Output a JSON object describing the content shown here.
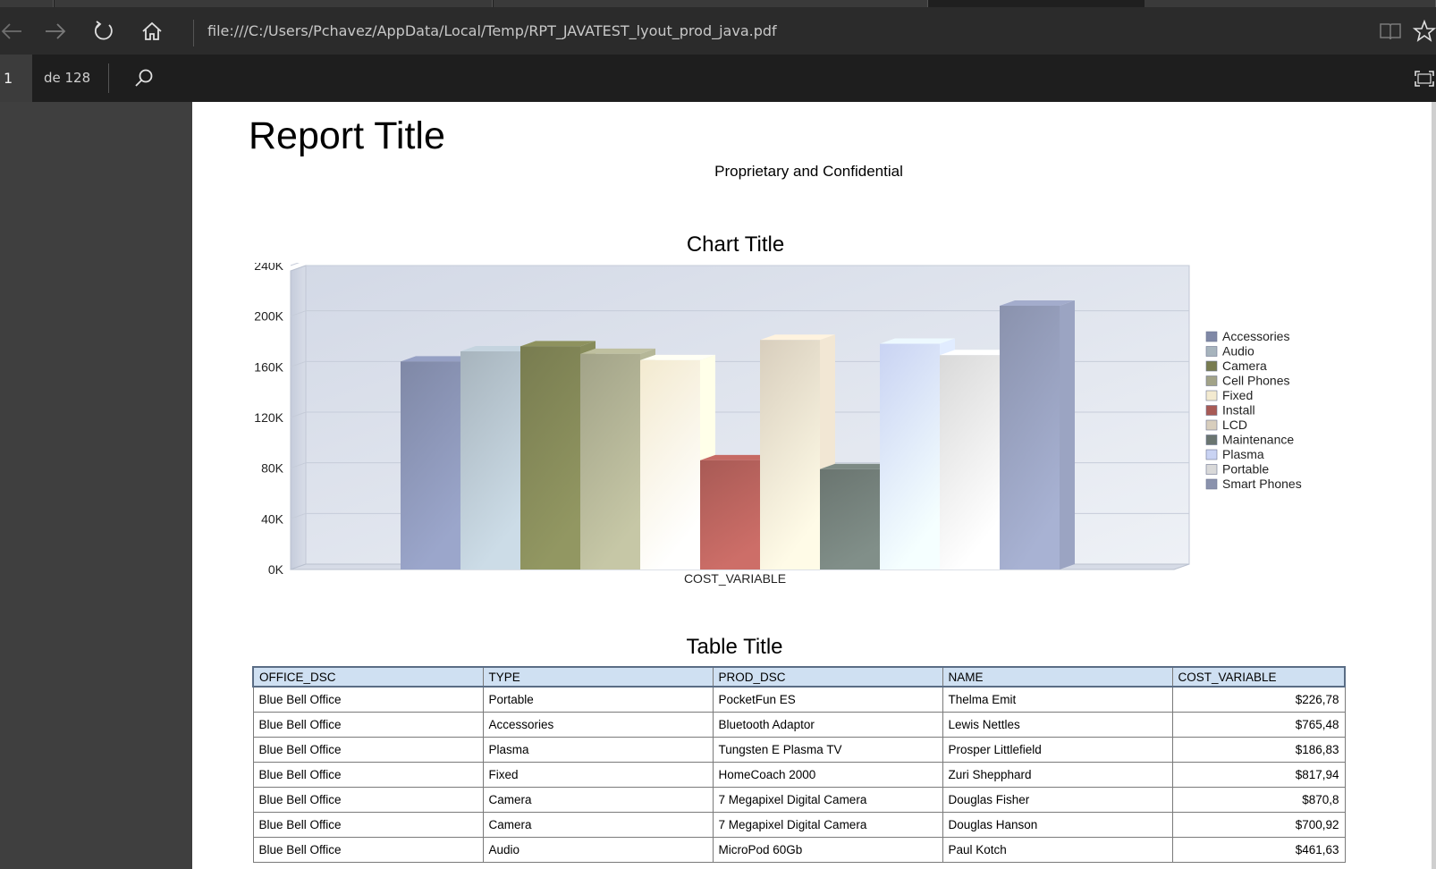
{
  "browser": {
    "url": "file:///C:/Users/Pchavez/AppData/Local/Temp/RPT_JAVATEST_lyout_prod_java.pdf"
  },
  "pdf_toolbar": {
    "current_page": "1",
    "page_count_label": "de 128"
  },
  "report": {
    "title": "Report Title",
    "subtitle": "Proprietary and Confidential",
    "chart_title": "Chart Title",
    "table_title": "Table Title"
  },
  "chart_data": {
    "type": "bar",
    "title": "Chart Title",
    "xlabel": "COST_VARIABLE",
    "ylabel": "",
    "ylim": [
      0,
      240000
    ],
    "yticks": [
      "0K",
      "40K",
      "80K",
      "120K",
      "160K",
      "200K",
      "240K"
    ],
    "categories": [
      "COST_VARIABLE"
    ],
    "legend_position": "right",
    "grid": true,
    "series": [
      {
        "name": "Accessories",
        "values": [
          160000
        ],
        "color": "#7f88a6"
      },
      {
        "name": "Audio",
        "values": [
          168000
        ],
        "color": "#a7b4bd"
      },
      {
        "name": "Camera",
        "values": [
          172000
        ],
        "color": "#787c50"
      },
      {
        "name": "Cell Phones",
        "values": [
          166000
        ],
        "color": "#a2a388"
      },
      {
        "name": "Fixed",
        "values": [
          161000
        ],
        "color": "#f3ead0"
      },
      {
        "name": "Install",
        "values": [
          82000
        ],
        "color": "#a85a55"
      },
      {
        "name": "LCD",
        "values": [
          177000
        ],
        "color": "#d8cebd"
      },
      {
        "name": "Maintenance",
        "values": [
          75000
        ],
        "color": "#6a7570"
      },
      {
        "name": "Plasma",
        "values": [
          174000
        ],
        "color": "#c9d3f3"
      },
      {
        "name": "Portable",
        "values": [
          165000
        ],
        "color": "#d9d9d9"
      },
      {
        "name": "Smart Phones",
        "values": [
          204000
        ],
        "color": "#8a92ad"
      }
    ]
  },
  "table": {
    "columns": [
      "OFFICE_DSC",
      "TYPE",
      "PROD_DSC",
      "NAME",
      "COST_VARIABLE"
    ],
    "rows": [
      [
        "Blue Bell Office",
        "Portable",
        "PocketFun ES",
        "Thelma Emit",
        "$226,78"
      ],
      [
        "Blue Bell Office",
        "Accessories",
        "Bluetooth Adaptor",
        "Lewis Nettles",
        "$765,48"
      ],
      [
        "Blue Bell Office",
        "Plasma",
        "Tungsten E Plasma TV",
        "Prosper Littlefield",
        "$186,83"
      ],
      [
        "Blue Bell Office",
        "Fixed",
        "HomeCoach 2000",
        "Zuri Shepphard",
        "$817,94"
      ],
      [
        "Blue Bell Office",
        "Camera",
        "7 Megapixel Digital Camera",
        "Douglas Fisher",
        "$870,8"
      ],
      [
        "Blue Bell Office",
        "Camera",
        "7 Megapixel Digital Camera",
        "Douglas Hanson",
        "$700,92"
      ],
      [
        "Blue Bell Office",
        "Audio",
        "MicroPod 60Gb",
        "Paul Kotch",
        "$461,63"
      ]
    ]
  }
}
